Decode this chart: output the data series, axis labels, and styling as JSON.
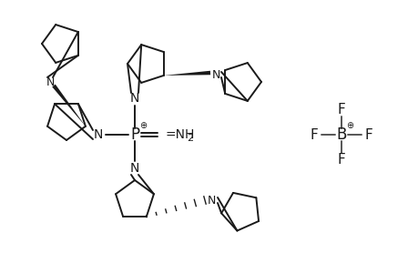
{
  "bg_color": "#ffffff",
  "lc": "#1a1a1a",
  "lw": 1.4,
  "figsize": [
    4.6,
    3.0
  ],
  "dpi": 100,
  "P": [
    148,
    152
  ],
  "BF4": [
    375,
    152
  ]
}
